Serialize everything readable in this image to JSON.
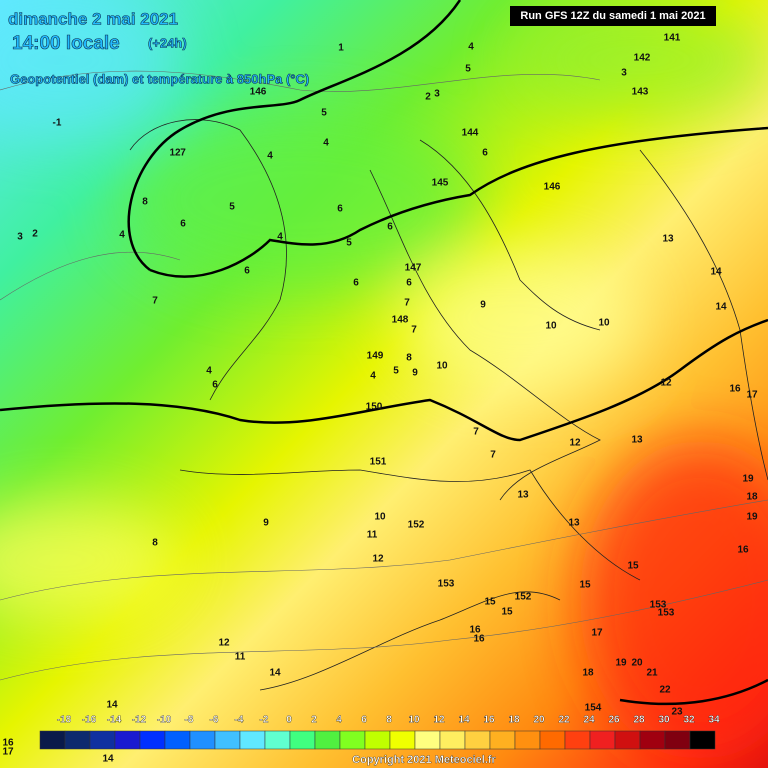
{
  "header": {
    "title": "dimanche 2 mai 2021",
    "subtitle": "14:00 locale",
    "lead": "(+24h)",
    "field": "Geopotentiel (dam) et température à 850hPa (°C)",
    "run": "Run GFS 12Z du samedi 1 mai 2021"
  },
  "legend": {
    "ticks": [
      -18,
      -16,
      -14,
      -12,
      -10,
      -8,
      -6,
      -4,
      -2,
      0,
      2,
      4,
      6,
      8,
      10,
      12,
      14,
      16,
      18,
      20,
      22,
      24,
      26,
      28,
      30,
      32,
      34
    ],
    "colors": [
      "#0a1a4a",
      "#0d2a6e",
      "#1030a0",
      "#1a1ad0",
      "#0030ff",
      "#0060ff",
      "#2090ff",
      "#40c0ff",
      "#60e8ff",
      "#60ffd0",
      "#40ff80",
      "#50f040",
      "#80ff20",
      "#c0ff00",
      "#f0ff00",
      "#ffff80",
      "#ffee60",
      "#ffd040",
      "#ffb020",
      "#ff9010",
      "#ff6a00",
      "#ff4010",
      "#f02020",
      "#d01010",
      "#a00010",
      "#800010",
      "#000000"
    ]
  },
  "map_labels": {
    "geopotential": [
      141,
      142,
      143,
      144,
      145,
      146,
      146,
      147,
      148,
      149,
      150,
      151,
      152,
      153,
      152,
      153,
      153,
      154
    ],
    "temperature": [
      -1,
      1,
      2,
      3,
      4,
      5,
      3,
      2,
      3,
      5,
      4,
      4,
      6,
      6,
      6,
      5,
      4,
      5,
      6,
      8,
      4,
      6,
      7,
      6,
      6,
      7,
      7,
      9,
      10,
      10,
      13,
      14,
      14,
      10,
      8,
      5,
      9,
      4,
      7,
      7,
      12,
      13,
      12,
      16,
      17,
      4,
      6,
      9,
      8,
      10,
      11,
      12,
      13,
      15,
      15,
      15,
      16,
      16,
      17,
      18,
      19,
      20,
      21,
      22,
      12,
      11,
      14,
      13,
      18,
      19,
      19,
      16,
      15,
      7,
      12,
      14,
      14,
      16,
      17,
      23
    ]
  },
  "footer": {
    "copyright": "Copyright 2021 Meteociel.fr"
  }
}
